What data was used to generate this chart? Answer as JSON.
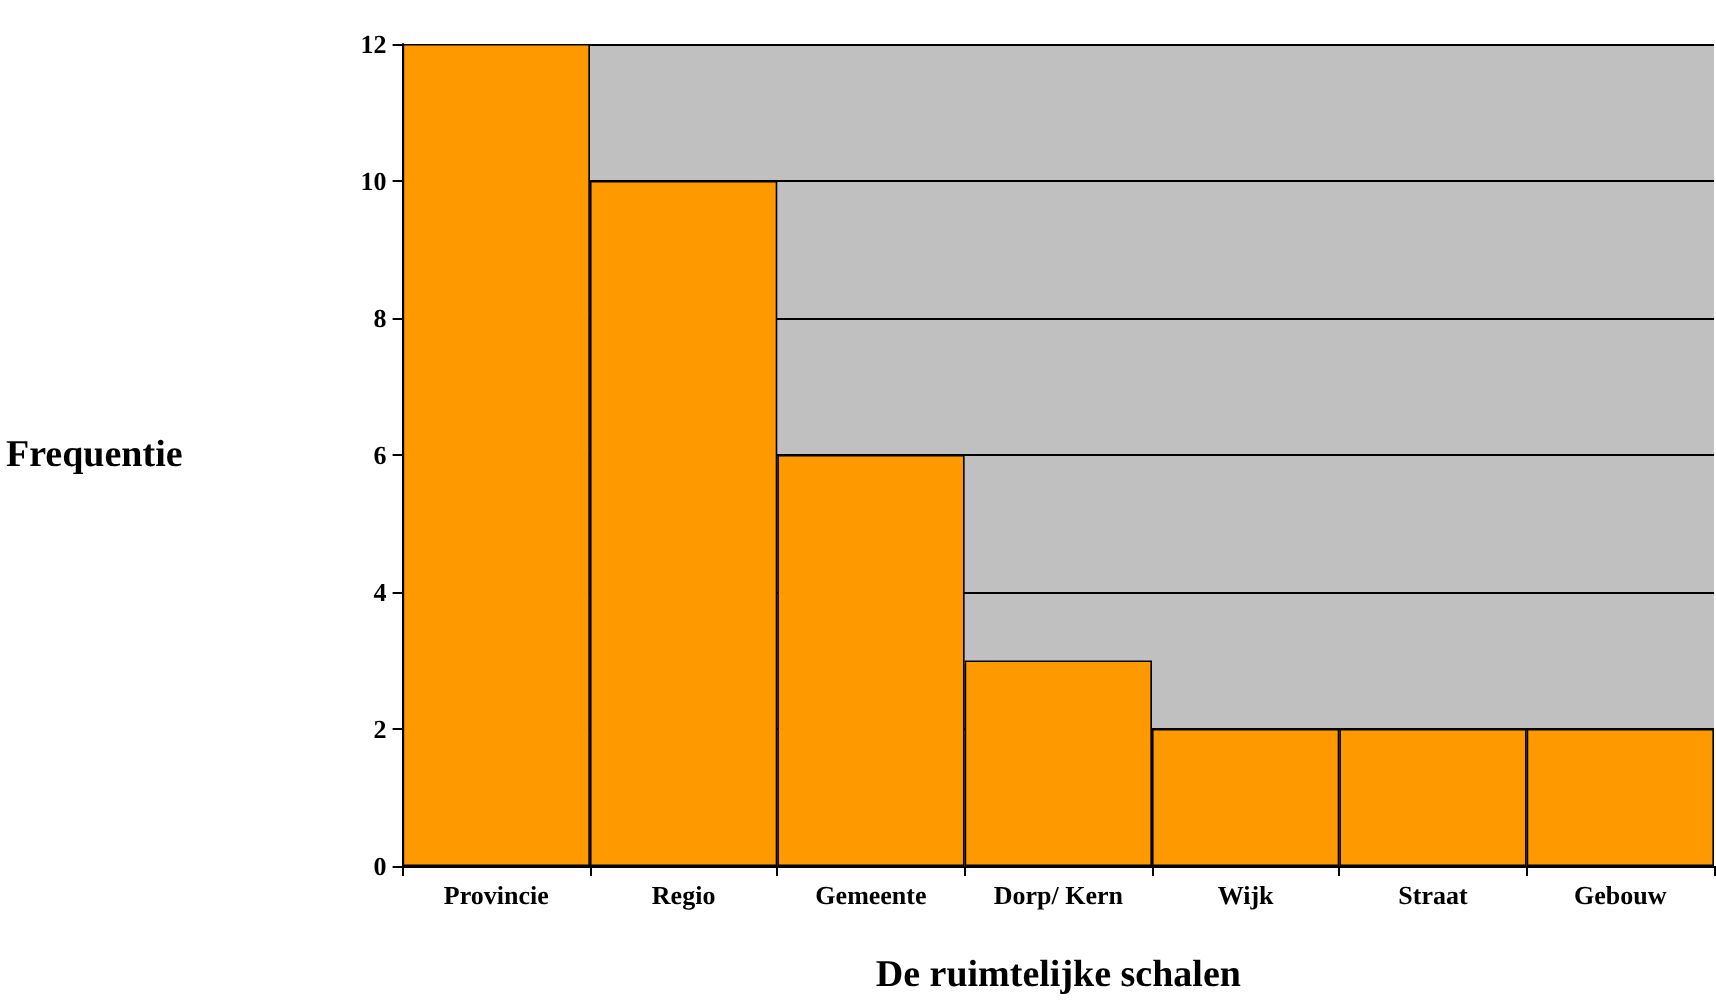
{
  "chart_data": {
    "type": "bar",
    "xlabel": "De ruimtelijke schalen",
    "ylabel": "Frequentie",
    "categories": [
      "Provincie",
      "Regio",
      "Gemeente",
      "Dorp/ Kern",
      "Wijk",
      "Straat",
      "Gebouw"
    ],
    "values": [
      12,
      10,
      6,
      3,
      2,
      2,
      2
    ],
    "color": "#ff9900",
    "ylim": [
      0,
      12
    ],
    "yticks": [
      0,
      2,
      4,
      6,
      8,
      10,
      12
    ],
    "grid": "y"
  }
}
